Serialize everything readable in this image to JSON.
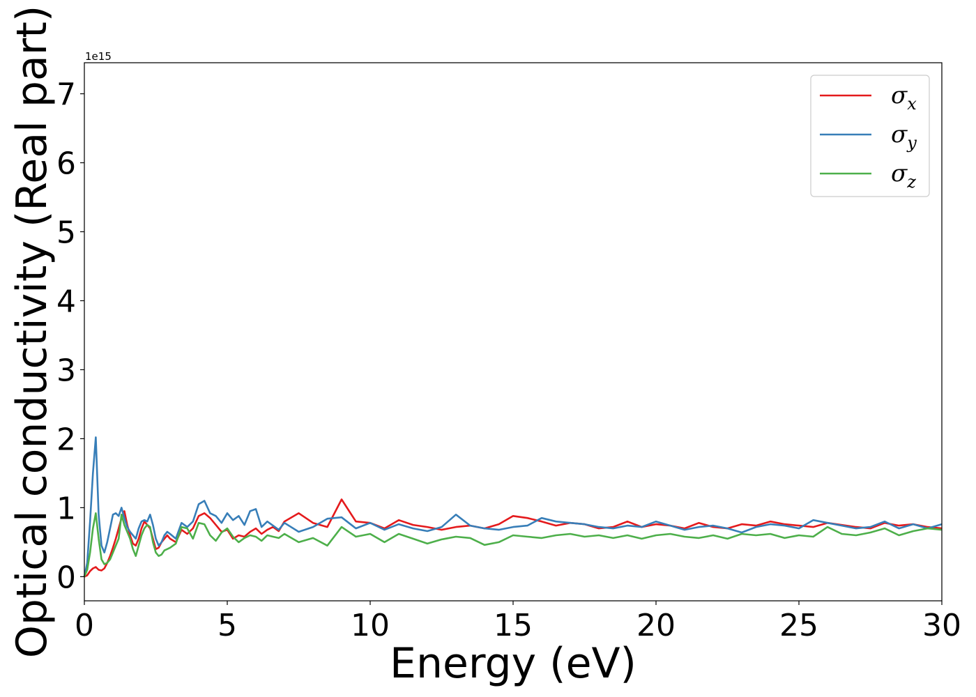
{
  "chart_data": {
    "type": "line",
    "title": "",
    "xlabel": "Energy (eV)",
    "ylabel": "Optical conductivity (Real part)",
    "y_offset_label": "1e15",
    "xlim": [
      0,
      30
    ],
    "ylim": [
      -0.35,
      7.45
    ],
    "xticks": [
      0,
      5,
      10,
      15,
      20,
      25,
      30
    ],
    "xtick_labels": [
      "0",
      "5",
      "10",
      "15",
      "20",
      "25",
      "30"
    ],
    "yticks": [
      0,
      1,
      2,
      3,
      4,
      5,
      6,
      7
    ],
    "ytick_labels": [
      "0",
      "1",
      "2",
      "3",
      "4",
      "5",
      "6",
      "7"
    ],
    "grid": false,
    "legend_position": "top-right",
    "x": [
      0,
      0.1,
      0.2,
      0.3,
      0.4,
      0.5,
      0.6,
      0.7,
      0.8,
      0.9,
      1.0,
      1.1,
      1.2,
      1.3,
      1.4,
      1.5,
      1.6,
      1.7,
      1.8,
      1.9,
      2.0,
      2.1,
      2.2,
      2.3,
      2.4,
      2.5,
      2.6,
      2.7,
      2.8,
      2.9,
      3.0,
      3.2,
      3.4,
      3.6,
      3.8,
      4.0,
      4.2,
      4.4,
      4.6,
      4.8,
      5.0,
      5.2,
      5.4,
      5.6,
      5.8,
      6.0,
      6.2,
      6.4,
      6.6,
      6.8,
      7.0,
      7.5,
      8.0,
      8.5,
      9.0,
      9.5,
      10.0,
      10.5,
      11.0,
      11.5,
      12.0,
      12.5,
      13.0,
      13.5,
      14.0,
      14.5,
      15.0,
      15.5,
      16.0,
      16.5,
      17.0,
      17.5,
      18.0,
      18.5,
      19.0,
      19.5,
      20.0,
      20.5,
      21.0,
      21.5,
      22.0,
      22.5,
      23.0,
      23.5,
      24.0,
      24.5,
      25.0,
      25.5,
      26.0,
      26.5,
      27.0,
      27.5,
      28.0,
      28.5,
      29.0,
      29.5,
      30.0
    ],
    "series": [
      {
        "name": "σx",
        "color": "#e41a1c",
        "values": [
          0.0,
          0.02,
          0.08,
          0.12,
          0.14,
          0.1,
          0.09,
          0.12,
          0.2,
          0.3,
          0.42,
          0.55,
          0.7,
          0.85,
          0.95,
          0.75,
          0.6,
          0.48,
          0.45,
          0.55,
          0.7,
          0.8,
          0.75,
          0.7,
          0.55,
          0.4,
          0.42,
          0.5,
          0.55,
          0.6,
          0.55,
          0.5,
          0.68,
          0.62,
          0.7,
          0.88,
          0.92,
          0.85,
          0.75,
          0.65,
          0.68,
          0.55,
          0.6,
          0.58,
          0.65,
          0.7,
          0.62,
          0.68,
          0.72,
          0.66,
          0.8,
          0.92,
          0.78,
          0.72,
          1.12,
          0.8,
          0.78,
          0.7,
          0.82,
          0.75,
          0.72,
          0.68,
          0.72,
          0.74,
          0.7,
          0.76,
          0.88,
          0.85,
          0.8,
          0.74,
          0.78,
          0.76,
          0.7,
          0.72,
          0.8,
          0.72,
          0.76,
          0.74,
          0.7,
          0.78,
          0.72,
          0.7,
          0.76,
          0.74,
          0.8,
          0.76,
          0.74,
          0.72,
          0.78,
          0.75,
          0.72,
          0.7,
          0.78,
          0.74,
          0.76,
          0.72,
          0.7
        ]
      },
      {
        "name": "σy",
        "color": "#377eb8",
        "values": [
          0.0,
          0.2,
          0.8,
          1.5,
          2.02,
          0.9,
          0.45,
          0.35,
          0.5,
          0.7,
          0.9,
          0.92,
          0.88,
          1.0,
          0.85,
          0.72,
          0.65,
          0.6,
          0.55,
          0.7,
          0.8,
          0.82,
          0.8,
          0.9,
          0.75,
          0.55,
          0.45,
          0.5,
          0.6,
          0.65,
          0.62,
          0.55,
          0.78,
          0.72,
          0.8,
          1.05,
          1.1,
          0.92,
          0.88,
          0.78,
          0.92,
          0.82,
          0.88,
          0.75,
          0.95,
          0.98,
          0.72,
          0.8,
          0.74,
          0.68,
          0.78,
          0.65,
          0.72,
          0.84,
          0.86,
          0.7,
          0.78,
          0.68,
          0.76,
          0.7,
          0.66,
          0.72,
          0.9,
          0.74,
          0.7,
          0.68,
          0.72,
          0.74,
          0.85,
          0.8,
          0.78,
          0.76,
          0.72,
          0.7,
          0.74,
          0.72,
          0.8,
          0.74,
          0.68,
          0.72,
          0.74,
          0.7,
          0.64,
          0.72,
          0.76,
          0.74,
          0.7,
          0.82,
          0.78,
          0.74,
          0.7,
          0.72,
          0.8,
          0.7,
          0.76,
          0.7,
          0.76
        ]
      },
      {
        "name": "σz",
        "color": "#4daf4a",
        "values": [
          0.0,
          0.1,
          0.35,
          0.7,
          0.92,
          0.55,
          0.25,
          0.18,
          0.2,
          0.25,
          0.35,
          0.45,
          0.55,
          0.9,
          0.75,
          0.65,
          0.55,
          0.4,
          0.3,
          0.45,
          0.6,
          0.7,
          0.75,
          0.72,
          0.5,
          0.35,
          0.3,
          0.32,
          0.38,
          0.4,
          0.42,
          0.48,
          0.72,
          0.7,
          0.55,
          0.78,
          0.76,
          0.6,
          0.52,
          0.64,
          0.7,
          0.58,
          0.5,
          0.56,
          0.6,
          0.58,
          0.52,
          0.6,
          0.58,
          0.56,
          0.62,
          0.5,
          0.56,
          0.45,
          0.72,
          0.58,
          0.62,
          0.5,
          0.62,
          0.55,
          0.48,
          0.54,
          0.58,
          0.56,
          0.46,
          0.5,
          0.6,
          0.58,
          0.56,
          0.6,
          0.62,
          0.58,
          0.6,
          0.56,
          0.6,
          0.55,
          0.6,
          0.62,
          0.58,
          0.56,
          0.6,
          0.55,
          0.62,
          0.6,
          0.62,
          0.56,
          0.6,
          0.58,
          0.72,
          0.62,
          0.6,
          0.64,
          0.7,
          0.6,
          0.66,
          0.7,
          0.68
        ]
      }
    ]
  }
}
